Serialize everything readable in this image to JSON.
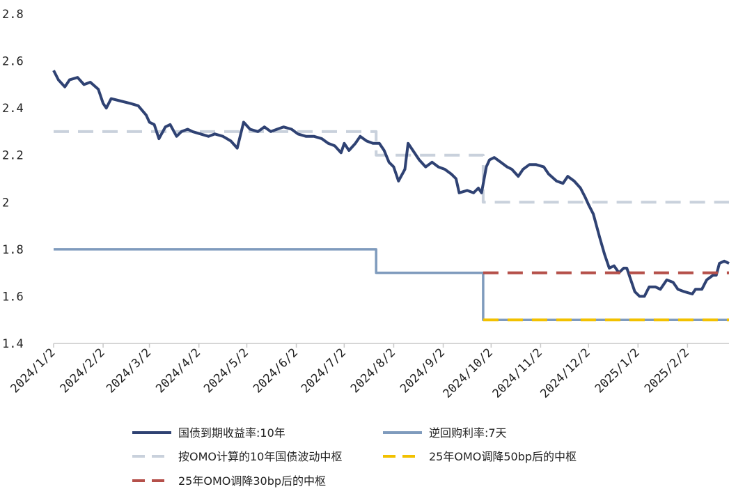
{
  "chart_data": {
    "type": "line",
    "title": "",
    "xlabel": "",
    "ylabel": "",
    "ylim": [
      1.4,
      2.8
    ],
    "yticks": [
      "1.4",
      "1.6",
      "1.8",
      "2",
      "2.2",
      "2.4",
      "2.6",
      "2.8"
    ],
    "x_range": [
      "2024-01-02",
      "2025-02-28"
    ],
    "xticks": [
      "2024/1/2",
      "2024/2/2",
      "2024/3/2",
      "2024/4/2",
      "2024/5/2",
      "2024/6/2",
      "2024/7/2",
      "2024/8/2",
      "2024/9/2",
      "2024/10/2",
      "2024/11/2",
      "2024/12/2",
      "2025/1/2",
      "2025/2/2"
    ],
    "grid": false,
    "legend_position": "bottom",
    "series": [
      {
        "name": "国债到期收益率:10年",
        "color": "#2f4273",
        "style": "solid",
        "points": [
          [
            "2024-01-02",
            2.56
          ],
          [
            "2024-01-05",
            2.52
          ],
          [
            "2024-01-09",
            2.49
          ],
          [
            "2024-01-12",
            2.52
          ],
          [
            "2024-01-17",
            2.53
          ],
          [
            "2024-01-21",
            2.5
          ],
          [
            "2024-01-25",
            2.51
          ],
          [
            "2024-01-30",
            2.48
          ],
          [
            "2024-02-02",
            2.42
          ],
          [
            "2024-02-04",
            2.4
          ],
          [
            "2024-02-07",
            2.44
          ],
          [
            "2024-02-13",
            2.43
          ],
          [
            "2024-02-19",
            2.42
          ],
          [
            "2024-02-24",
            2.41
          ],
          [
            "2024-02-29",
            2.37
          ],
          [
            "2024-03-02",
            2.34
          ],
          [
            "2024-03-05",
            2.33
          ],
          [
            "2024-03-08",
            2.27
          ],
          [
            "2024-03-12",
            2.32
          ],
          [
            "2024-03-15",
            2.33
          ],
          [
            "2024-03-19",
            2.28
          ],
          [
            "2024-03-22",
            2.3
          ],
          [
            "2024-03-26",
            2.31
          ],
          [
            "2024-03-29",
            2.3
          ],
          [
            "2024-04-03",
            2.29
          ],
          [
            "2024-04-08",
            2.28
          ],
          [
            "2024-04-12",
            2.29
          ],
          [
            "2024-04-17",
            2.28
          ],
          [
            "2024-04-22",
            2.26
          ],
          [
            "2024-04-26",
            2.23
          ],
          [
            "2024-04-30",
            2.34
          ],
          [
            "2024-05-04",
            2.31
          ],
          [
            "2024-05-09",
            2.3
          ],
          [
            "2024-05-13",
            2.32
          ],
          [
            "2024-05-17",
            2.3
          ],
          [
            "2024-05-21",
            2.31
          ],
          [
            "2024-05-25",
            2.32
          ],
          [
            "2024-05-30",
            2.31
          ],
          [
            "2024-06-03",
            2.29
          ],
          [
            "2024-06-08",
            2.28
          ],
          [
            "2024-06-13",
            2.28
          ],
          [
            "2024-06-18",
            2.27
          ],
          [
            "2024-06-22",
            2.25
          ],
          [
            "2024-06-26",
            2.24
          ],
          [
            "2024-06-30",
            2.21
          ],
          [
            "2024-07-02",
            2.25
          ],
          [
            "2024-07-05",
            2.22
          ],
          [
            "2024-07-09",
            2.25
          ],
          [
            "2024-07-12",
            2.28
          ],
          [
            "2024-07-16",
            2.26
          ],
          [
            "2024-07-20",
            2.25
          ],
          [
            "2024-07-24",
            2.25
          ],
          [
            "2024-07-27",
            2.22
          ],
          [
            "2024-07-30",
            2.17
          ],
          [
            "2024-08-02",
            2.15
          ],
          [
            "2024-08-05",
            2.09
          ],
          [
            "2024-08-09",
            2.14
          ],
          [
            "2024-08-11",
            2.25
          ],
          [
            "2024-08-14",
            2.22
          ],
          [
            "2024-08-18",
            2.18
          ],
          [
            "2024-08-22",
            2.15
          ],
          [
            "2024-08-26",
            2.17
          ],
          [
            "2024-08-30",
            2.15
          ],
          [
            "2024-09-03",
            2.14
          ],
          [
            "2024-09-07",
            2.12
          ],
          [
            "2024-09-10",
            2.1
          ],
          [
            "2024-09-12",
            2.04
          ],
          [
            "2024-09-17",
            2.05
          ],
          [
            "2024-09-21",
            2.04
          ],
          [
            "2024-09-24",
            2.06
          ],
          [
            "2024-09-26",
            2.04
          ],
          [
            "2024-09-29",
            2.15
          ],
          [
            "2024-10-01",
            2.18
          ],
          [
            "2024-10-04",
            2.19
          ],
          [
            "2024-10-08",
            2.17
          ],
          [
            "2024-10-12",
            2.15
          ],
          [
            "2024-10-15",
            2.14
          ],
          [
            "2024-10-19",
            2.11
          ],
          [
            "2024-10-22",
            2.14
          ],
          [
            "2024-10-26",
            2.16
          ],
          [
            "2024-10-30",
            2.16
          ],
          [
            "2024-11-04",
            2.15
          ],
          [
            "2024-11-07",
            2.12
          ],
          [
            "2024-11-12",
            2.09
          ],
          [
            "2024-11-16",
            2.08
          ],
          [
            "2024-11-19",
            2.11
          ],
          [
            "2024-11-23",
            2.09
          ],
          [
            "2024-11-27",
            2.06
          ],
          [
            "2024-11-30",
            2.02
          ],
          [
            "2024-12-02",
            1.99
          ],
          [
            "2024-12-05",
            1.95
          ],
          [
            "2024-12-09",
            1.85
          ],
          [
            "2024-12-12",
            1.78
          ],
          [
            "2024-12-15",
            1.72
          ],
          [
            "2024-12-18",
            1.73
          ],
          [
            "2024-12-21",
            1.7
          ],
          [
            "2024-12-24",
            1.72
          ],
          [
            "2024-12-26",
            1.72
          ],
          [
            "2024-12-28",
            1.68
          ],
          [
            "2024-12-31",
            1.62
          ],
          [
            "2025-01-03",
            1.6
          ],
          [
            "2025-01-06",
            1.6
          ],
          [
            "2025-01-09",
            1.64
          ],
          [
            "2025-01-13",
            1.64
          ],
          [
            "2025-01-16",
            1.63
          ],
          [
            "2025-01-20",
            1.67
          ],
          [
            "2025-01-24",
            1.66
          ],
          [
            "2025-01-27",
            1.63
          ],
          [
            "2025-01-31",
            1.62
          ],
          [
            "2025-02-05",
            1.61
          ],
          [
            "2025-02-07",
            1.63
          ],
          [
            "2025-02-11",
            1.63
          ],
          [
            "2025-02-14",
            1.67
          ],
          [
            "2025-02-18",
            1.69
          ],
          [
            "2025-02-20",
            1.69
          ],
          [
            "2025-02-22",
            1.74
          ],
          [
            "2025-02-25",
            1.75
          ],
          [
            "2025-02-28",
            1.74
          ]
        ]
      },
      {
        "name": "逆回购利率:7天",
        "color": "#7f9bbd",
        "style": "solid",
        "points": [
          [
            "2024-01-02",
            1.8
          ],
          [
            "2024-07-22",
            1.8
          ],
          [
            "2024-07-22",
            1.7
          ],
          [
            "2024-09-27",
            1.7
          ],
          [
            "2024-09-27",
            1.5
          ],
          [
            "2025-02-28",
            1.5
          ]
        ]
      },
      {
        "name": "按OMO计算的10年国债波动中枢",
        "color": "#c9d1dc",
        "style": "dashed",
        "points": [
          [
            "2024-01-02",
            2.3
          ],
          [
            "2024-07-22",
            2.3
          ],
          [
            "2024-07-22",
            2.2
          ],
          [
            "2024-09-27",
            2.2
          ],
          [
            "2024-09-27",
            2.0
          ],
          [
            "2025-02-28",
            2.0
          ]
        ]
      },
      {
        "name": "25年OMO调降50bp后的中枢",
        "color": "#f2c100",
        "style": "dashed",
        "points": [
          [
            "2024-09-27",
            1.5
          ],
          [
            "2025-02-28",
            1.5
          ]
        ]
      },
      {
        "name": "25年OMO调降30bp后的中枢",
        "color": "#b5504a",
        "style": "dashed",
        "points": [
          [
            "2024-09-27",
            1.7
          ],
          [
            "2025-02-28",
            1.7
          ]
        ]
      }
    ]
  }
}
